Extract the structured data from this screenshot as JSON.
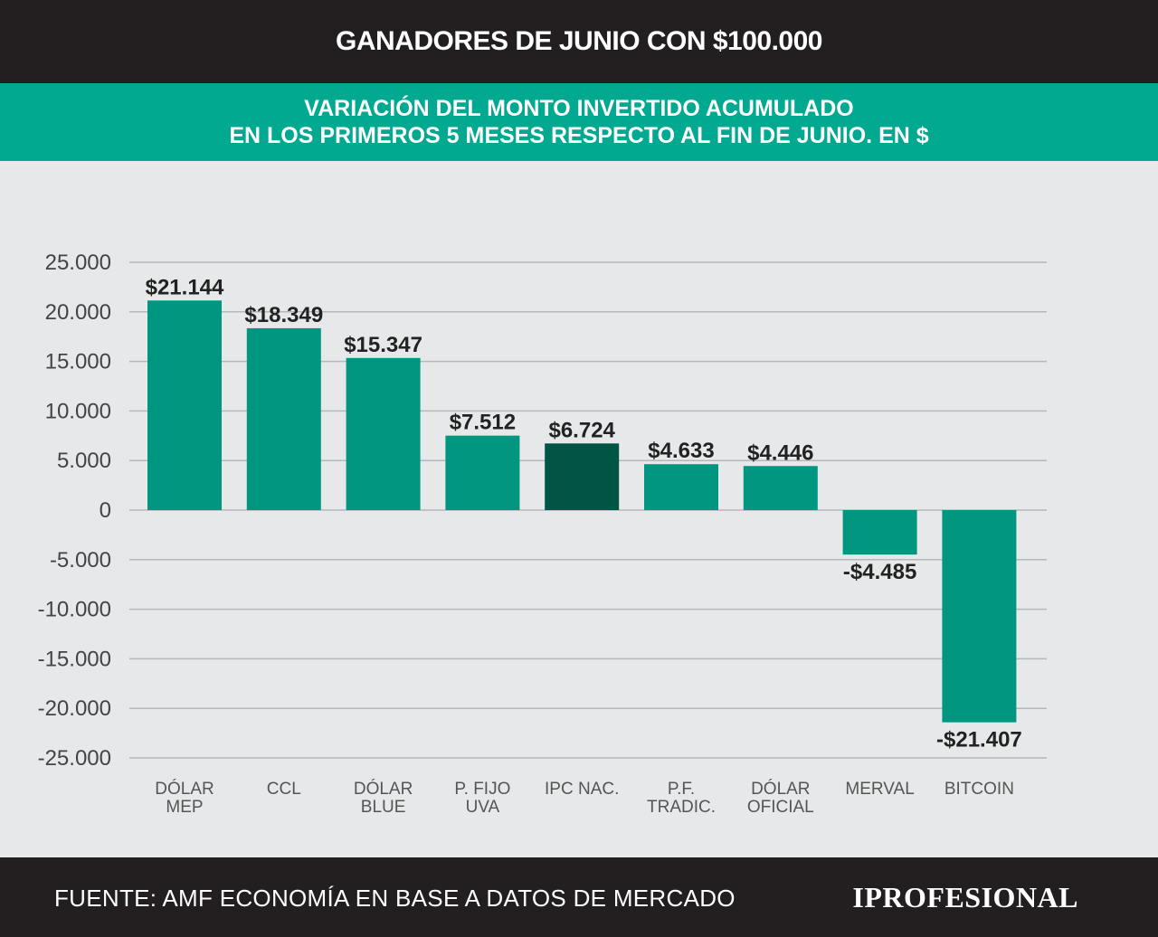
{
  "header": {
    "title": "GANADORES DE JUNIO CON $100.000",
    "subtitle_line1": "VARIACIÓN DEL MONTO INVERTIDO ACUMULADO",
    "subtitle_line2": "EN LOS PRIMEROS 5 MESES RESPECTO AL FIN DE JUNIO. EN $"
  },
  "footer": {
    "source": "FUENTE: AMF ECONOMÍA EN BASE A DATOS DE MERCADO",
    "logo": "IPROFESIONAL"
  },
  "colors": {
    "bar": "#00967f",
    "bar_highlight": "#005545",
    "grid": "#b4b8ba",
    "tick_text": "#444444",
    "label_text": "#222222",
    "category_text": "#555555"
  },
  "chart_data": {
    "type": "bar",
    "categories": [
      [
        "DÓLAR",
        "MEP"
      ],
      [
        "CCL"
      ],
      [
        "DÓLAR",
        "BLUE"
      ],
      [
        "P. FIJO",
        "UVA"
      ],
      [
        "IPC  NAC."
      ],
      [
        "P.F.",
        "TRADIC."
      ],
      [
        "DÓLAR",
        "OFICIAL"
      ],
      [
        "MERVAL"
      ],
      [
        "BITCOIN"
      ]
    ],
    "values": [
      21144,
      18349,
      15347,
      7512,
      6724,
      4633,
      4446,
      -4485,
      -21407
    ],
    "value_labels": [
      "$21.144",
      "$18.349",
      "$15.347",
      "$7.512",
      "$6.724",
      "$4.633",
      "$4.446",
      "-$4.485",
      "-$21.407"
    ],
    "highlight_index": 4,
    "yticks": [
      25000,
      20000,
      15000,
      10000,
      5000,
      0,
      -5000,
      -10000,
      -15000,
      -20000,
      -25000
    ],
    "ytick_labels": [
      "25.000",
      "20.000",
      "15.000",
      "10.000",
      "5.000",
      "0",
      "-5.000",
      "-10.000",
      "-15.000",
      "-20.000",
      "-25.000"
    ],
    "ylim": [
      -25000,
      25000
    ],
    "grid": true,
    "legend": "none"
  }
}
